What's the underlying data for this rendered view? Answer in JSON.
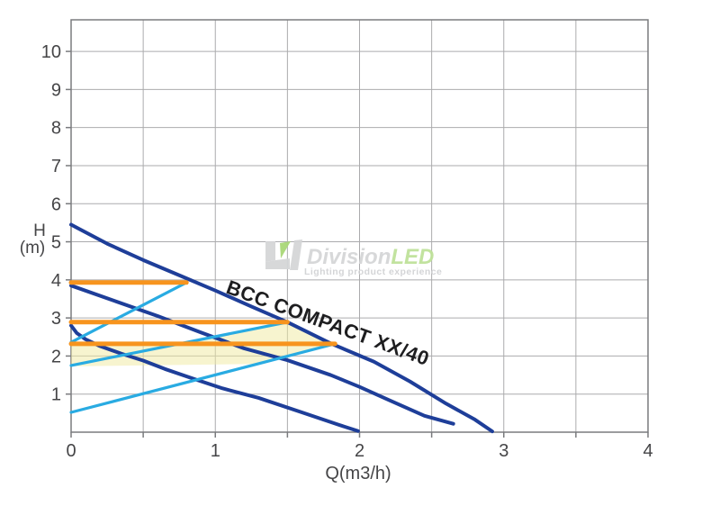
{
  "chart_data": {
    "type": "line",
    "title": "BCC COMPACT XX/40",
    "xlabel": "Q(m3/h)",
    "ylabel_line1": "H",
    "ylabel_line2": "(m)",
    "xlim": [
      0,
      4
    ],
    "ylim": [
      0,
      10.83
    ],
    "x_grid_step": 0.5,
    "y_grid_step": 1,
    "grid": true,
    "x_tick_labels": [
      0,
      1,
      2,
      3,
      4
    ],
    "y_tick_labels": [
      1,
      2,
      3,
      4,
      5,
      6,
      7,
      8,
      9,
      10
    ],
    "series": [
      {
        "name": "pump-curve-speed-3",
        "kind": "pump-curve",
        "color": "#1e3e99",
        "width": 4,
        "points": [
          [
            0,
            5.45
          ],
          [
            0.25,
            4.95
          ],
          [
            0.5,
            4.52
          ],
          [
            0.75,
            4.12
          ],
          [
            1.0,
            3.72
          ],
          [
            1.25,
            3.3
          ],
          [
            1.5,
            2.89
          ],
          [
            1.8,
            2.33
          ],
          [
            2.1,
            1.85
          ],
          [
            2.35,
            1.33
          ],
          [
            2.6,
            0.75
          ],
          [
            2.8,
            0.33
          ],
          [
            2.92,
            0.02
          ]
        ]
      },
      {
        "name": "pump-curve-speed-2",
        "kind": "pump-curve",
        "color": "#1e3e99",
        "width": 4,
        "points": [
          [
            0,
            3.85
          ],
          [
            0.3,
            3.45
          ],
          [
            0.6,
            3.05
          ],
          [
            0.9,
            2.62
          ],
          [
            1.2,
            2.2
          ],
          [
            1.5,
            1.89
          ],
          [
            1.8,
            1.5
          ],
          [
            2.0,
            1.19
          ],
          [
            2.2,
            0.85
          ],
          [
            2.45,
            0.43
          ],
          [
            2.65,
            0.22
          ]
        ]
      },
      {
        "name": "pump-curve-speed-1",
        "kind": "pump-curve",
        "color": "#1e3e99",
        "width": 4,
        "points": [
          [
            0,
            2.8
          ],
          [
            0.04,
            2.6
          ],
          [
            0.1,
            2.44
          ],
          [
            0.2,
            2.26
          ],
          [
            0.35,
            2.06
          ],
          [
            0.5,
            1.88
          ],
          [
            0.65,
            1.66
          ],
          [
            0.85,
            1.4
          ],
          [
            1.05,
            1.15
          ],
          [
            1.3,
            0.9
          ],
          [
            1.6,
            0.52
          ],
          [
            1.85,
            0.2
          ],
          [
            1.99,
            0.03
          ]
        ]
      },
      {
        "name": "system-curve-1",
        "kind": "system-curve",
        "color": "#29abe2",
        "width": 3.2,
        "points": [
          [
            0,
            2.36
          ],
          [
            0.8,
            3.93
          ]
        ]
      },
      {
        "name": "system-curve-2",
        "kind": "system-curve",
        "color": "#29abe2",
        "width": 3.2,
        "points": [
          [
            0,
            1.75
          ],
          [
            1.5,
            2.89
          ]
        ]
      },
      {
        "name": "system-curve-3",
        "kind": "system-curve",
        "color": "#29abe2",
        "width": 3.2,
        "points": [
          [
            0,
            0.52
          ],
          [
            1.83,
            2.32
          ]
        ]
      },
      {
        "name": "duty-head-line-1",
        "kind": "duty-head-line",
        "color": "#f7941e",
        "width": 5,
        "points": [
          [
            0,
            3.93
          ],
          [
            0.8,
            3.93
          ]
        ]
      },
      {
        "name": "duty-head-line-2",
        "kind": "duty-head-line",
        "color": "#f7941e",
        "width": 5,
        "points": [
          [
            0,
            2.89
          ],
          [
            1.5,
            2.89
          ]
        ]
      },
      {
        "name": "duty-head-line-3",
        "kind": "duty-head-line",
        "color": "#f7941e",
        "width": 5,
        "points": [
          [
            0,
            2.32
          ],
          [
            1.83,
            2.32
          ]
        ]
      }
    ],
    "region": {
      "name": "operating-area-fill",
      "fill": "#f0e9a0",
      "opacity": 0.5,
      "points": [
        [
          0,
          2.32
        ],
        [
          0.75,
          2.32
        ],
        [
          1.5,
          2.89
        ],
        [
          1.83,
          2.32
        ],
        [
          1.28,
          1.79
        ],
        [
          0,
          1.73
        ]
      ]
    },
    "legend": null
  },
  "watermark": {
    "brand_gray": "Division",
    "brand_green": "LED",
    "tagline": "Lighting product experience",
    "logo_gray": "#d5d6d8",
    "logo_green": "#a9d878"
  },
  "style": {
    "grid_color": "#ababad",
    "border_color": "#7a7b7e",
    "tick_color": "#7a7b7e",
    "label_color": "#454547",
    "title_color": "#1e1e20",
    "background": "#ffffff",
    "pump_curve_color": "#1e3e99",
    "system_curve_color": "#29abe2",
    "duty_line_color": "#f7941e",
    "region_fill": "#f0e9a0"
  }
}
